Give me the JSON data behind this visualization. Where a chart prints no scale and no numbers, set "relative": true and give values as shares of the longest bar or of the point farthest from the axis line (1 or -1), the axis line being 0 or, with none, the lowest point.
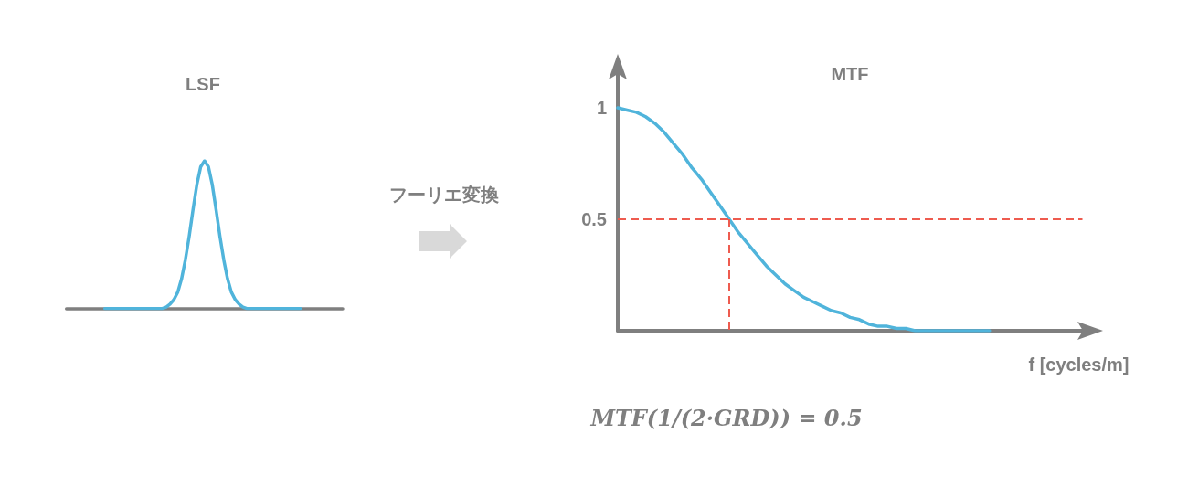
{
  "chart_data": [
    {
      "type": "line",
      "title": "LSF",
      "relative": true,
      "tick_labels": false,
      "line_style": "solid",
      "categories": [
        null,
        null,
        null,
        null,
        null,
        null,
        null,
        null,
        null,
        null,
        null,
        null,
        null,
        null,
        null,
        null,
        null,
        null,
        null,
        null,
        null,
        null,
        null,
        null,
        null,
        null,
        null,
        null,
        null,
        null,
        null,
        null,
        null,
        null,
        null,
        null,
        null,
        null,
        null,
        null,
        null,
        null,
        null,
        null,
        null,
        null,
        null,
        null,
        null,
        null,
        null,
        null,
        null,
        null,
        null,
        null,
        null,
        null,
        null,
        null,
        null,
        null,
        null,
        null,
        null,
        null,
        null,
        null,
        null,
        null,
        null,
        null,
        null
      ],
      "series": [
        {
          "color": "#50b4db",
          "values": [
            null,
            null,
            null,
            null,
            null,
            null,
            null,
            null,
            null,
            null,
            0,
            0,
            0,
            0,
            0,
            0,
            0,
            0,
            0,
            0,
            0,
            0,
            0,
            0,
            0,
            0,
            0.01,
            0.03,
            0.06,
            0.11,
            0.2,
            0.33,
            0.49,
            0.67,
            0.84,
            0.96,
            1,
            0.96,
            0.84,
            0.67,
            0.49,
            0.33,
            0.2,
            0.11,
            0.06,
            0.03,
            0.01,
            0,
            0,
            0,
            0,
            0,
            0,
            0,
            0,
            0,
            0,
            0,
            0,
            0,
            0,
            0,
            null,
            null,
            null,
            null,
            null,
            null,
            null,
            null,
            null,
            null,
            null
          ]
        }
      ],
      "annotations": [
        "フーリエ変換"
      ]
    },
    {
      "type": "line",
      "title": "MTF",
      "xlabel": "f [cycles/m]",
      "tick_labels": "y",
      "line_style": "solid",
      "categories": [
        null,
        null,
        null,
        null,
        null,
        null,
        null,
        null,
        null,
        null,
        null,
        null,
        null,
        null,
        null,
        null,
        null,
        null,
        null,
        null,
        null,
        null,
        null,
        null,
        null,
        null,
        null,
        null,
        null,
        null,
        null,
        null,
        null,
        null,
        null,
        null,
        null,
        null,
        null,
        null,
        null,
        null,
        null,
        null,
        null,
        null,
        null,
        null,
        null,
        null,
        null
      ],
      "series": [
        {
          "color": "#50b4db",
          "values": [
            1,
            0.99,
            0.98,
            0.96,
            0.93,
            0.89,
            0.84,
            0.79,
            0.73,
            0.68,
            0.62,
            0.56,
            0.5,
            0.44,
            0.39,
            0.34,
            0.29,
            0.25,
            0.21,
            0.18,
            0.15,
            0.13,
            0.11,
            0.09,
            0.08,
            0.06,
            0.05,
            0.03,
            0.02,
            0.02,
            0.01,
            0.01,
            0,
            0,
            0,
            0,
            0,
            0,
            0,
            0,
            0,
            null,
            null,
            null,
            null,
            null,
            null,
            null,
            null,
            null,
            null
          ]
        }
      ],
      "ylim": [
        0,
        1.15
      ],
      "yticks": [
        0.5,
        1
      ],
      "ref_lines": [
        {
          "axis": "y",
          "value": 0.5,
          "color": "#ee5b4f",
          "line_style": "dashed"
        }
      ],
      "annotations": [
        "MTF(1/(2·GRD)) = 0.5"
      ]
    }
  ]
}
